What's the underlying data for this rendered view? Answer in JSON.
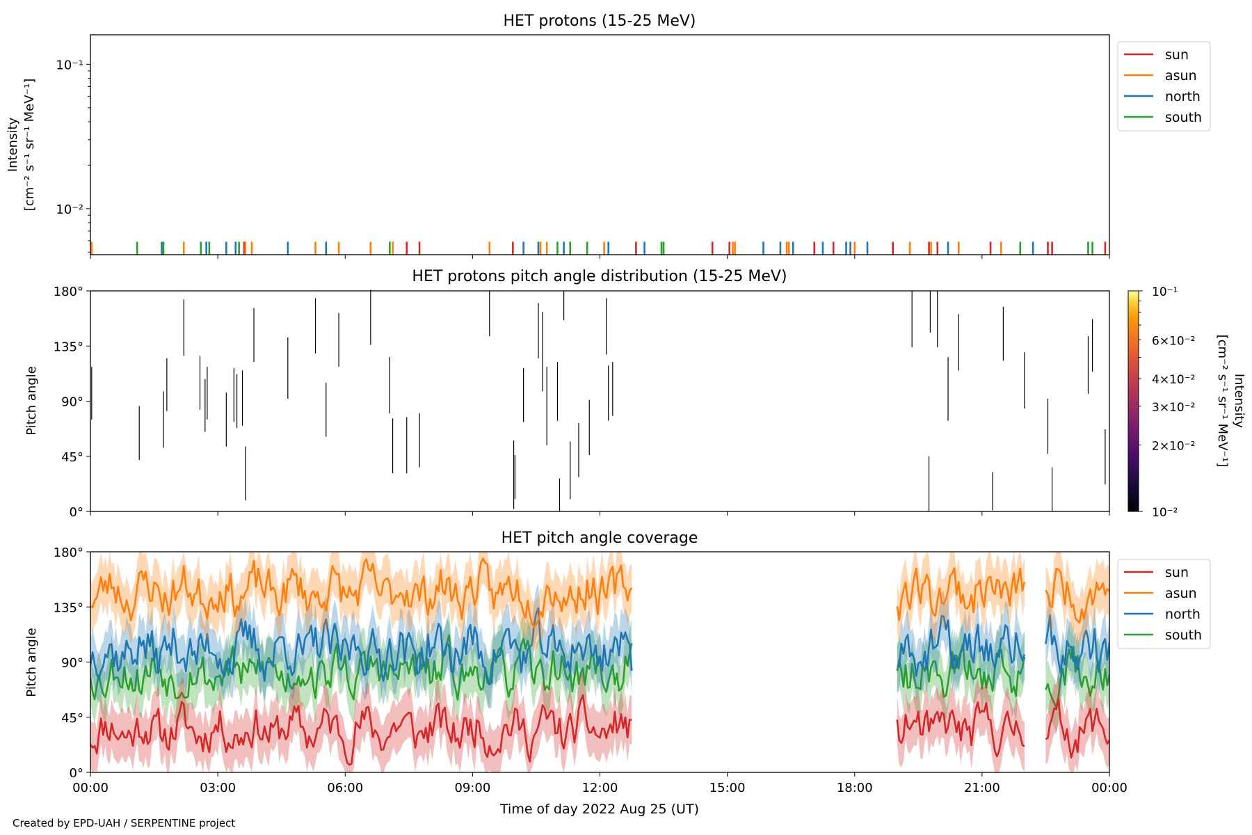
{
  "credit": "Created by EPD-UAH / SERPENTINE project",
  "xlabel": "Time of day 2022 Aug 25 (UT)",
  "xticks": [
    "00:00",
    "03:00",
    "06:00",
    "09:00",
    "12:00",
    "15:00",
    "18:00",
    "21:00",
    "00:00"
  ],
  "x_range_hours": [
    0,
    24
  ],
  "colors": {
    "sun": "#d62728",
    "asun": "#ff7f0e",
    "north": "#1f77b4",
    "south": "#2ca02c"
  },
  "legend_entries": [
    "sun",
    "asun",
    "north",
    "south"
  ],
  "chart_data": [
    {
      "type": "line",
      "title": "HET protons (15-25 MeV)",
      "ylabel_line1": "Intensity",
      "ylabel_line2": "[cm⁻² s⁻¹ sr⁻¹ MeV⁻¹]",
      "yscale": "log",
      "ylim": [
        0.0048,
        0.16
      ],
      "ytick_labels": [
        "10⁻²",
        "10⁻¹"
      ],
      "ytick_values": [
        0.01,
        0.1
      ],
      "legend_placement": "outside-right-top",
      "spikes": [
        {
          "x": 0.03,
          "series": "asun"
        },
        {
          "x": 1.1,
          "series": "south"
        },
        {
          "x": 1.68,
          "series": "north"
        },
        {
          "x": 1.72,
          "series": "south"
        },
        {
          "x": 2.2,
          "series": "asun"
        },
        {
          "x": 2.6,
          "series": "south"
        },
        {
          "x": 2.73,
          "series": "north"
        },
        {
          "x": 2.8,
          "series": "south"
        },
        {
          "x": 3.2,
          "series": "north"
        },
        {
          "x": 3.42,
          "series": "north"
        },
        {
          "x": 3.5,
          "series": "south"
        },
        {
          "x": 3.62,
          "series": "sun"
        },
        {
          "x": 3.65,
          "series": "asun"
        },
        {
          "x": 3.8,
          "series": "asun"
        },
        {
          "x": 4.65,
          "series": "north"
        },
        {
          "x": 5.3,
          "series": "asun"
        },
        {
          "x": 5.55,
          "series": "north"
        },
        {
          "x": 5.85,
          "series": "asun"
        },
        {
          "x": 6.6,
          "series": "asun"
        },
        {
          "x": 7.05,
          "series": "south"
        },
        {
          "x": 7.12,
          "series": "asun"
        },
        {
          "x": 7.45,
          "series": "sun"
        },
        {
          "x": 7.75,
          "series": "sun"
        },
        {
          "x": 9.4,
          "series": "asun"
        },
        {
          "x": 9.95,
          "series": "sun"
        },
        {
          "x": 10.2,
          "series": "north"
        },
        {
          "x": 10.55,
          "series": "north"
        },
        {
          "x": 10.6,
          "series": "asun"
        },
        {
          "x": 10.75,
          "series": "asun"
        },
        {
          "x": 11.0,
          "series": "south"
        },
        {
          "x": 11.15,
          "series": "north"
        },
        {
          "x": 11.3,
          "series": "south"
        },
        {
          "x": 11.7,
          "series": "south"
        },
        {
          "x": 12.1,
          "series": "asun"
        },
        {
          "x": 12.2,
          "series": "north"
        },
        {
          "x": 12.85,
          "series": "sun"
        },
        {
          "x": 13.05,
          "series": "north"
        },
        {
          "x": 13.45,
          "series": "south"
        },
        {
          "x": 13.5,
          "series": "south"
        },
        {
          "x": 14.65,
          "series": "sun"
        },
        {
          "x": 15.05,
          "series": "sun"
        },
        {
          "x": 15.13,
          "series": "asun"
        },
        {
          "x": 15.18,
          "series": "asun"
        },
        {
          "x": 15.85,
          "series": "north"
        },
        {
          "x": 16.25,
          "series": "north"
        },
        {
          "x": 16.4,
          "series": "asun"
        },
        {
          "x": 16.45,
          "series": "asun"
        },
        {
          "x": 16.55,
          "series": "north"
        },
        {
          "x": 17.05,
          "series": "sun"
        },
        {
          "x": 17.25,
          "series": "north"
        },
        {
          "x": 17.5,
          "series": "sun"
        },
        {
          "x": 17.8,
          "series": "north"
        },
        {
          "x": 17.9,
          "series": "north"
        },
        {
          "x": 18.0,
          "series": "asun"
        },
        {
          "x": 18.3,
          "series": "north"
        },
        {
          "x": 18.9,
          "series": "sun"
        },
        {
          "x": 19.3,
          "series": "asun"
        },
        {
          "x": 19.75,
          "series": "sun"
        },
        {
          "x": 19.8,
          "series": "asun"
        },
        {
          "x": 19.95,
          "series": "sun"
        },
        {
          "x": 20.2,
          "series": "north"
        },
        {
          "x": 20.45,
          "series": "asun"
        },
        {
          "x": 21.2,
          "series": "sun"
        },
        {
          "x": 21.45,
          "series": "asun"
        },
        {
          "x": 21.9,
          "series": "south"
        },
        {
          "x": 22.2,
          "series": "north"
        },
        {
          "x": 22.55,
          "series": "sun"
        },
        {
          "x": 22.65,
          "series": "sun"
        },
        {
          "x": 23.5,
          "series": "south"
        },
        {
          "x": 23.6,
          "series": "south"
        },
        {
          "x": 23.9,
          "series": "sun"
        }
      ]
    },
    {
      "type": "scatter",
      "title": "HET protons pitch angle distribution (15-25 MeV)",
      "ylabel": "Pitch angle",
      "ylim": [
        0,
        180
      ],
      "ytick_labels": [
        "0°",
        "45°",
        "90°",
        "135°",
        "180°"
      ],
      "ytick_values": [
        0,
        45,
        90,
        135,
        180
      ],
      "colorbar": {
        "label_line1": "Intensity",
        "label_line2": "[cm⁻² s⁻¹ sr⁻¹ MeV⁻¹]",
        "scale": "log",
        "range": [
          0.01,
          0.1
        ],
        "tick_labels": [
          "10⁻²",
          "2×10⁻²",
          "3×10⁻²",
          "4×10⁻²",
          "6×10⁻²",
          "10⁻¹"
        ],
        "tick_values": [
          0.01,
          0.02,
          0.03,
          0.04,
          0.06,
          0.1
        ],
        "colormap": "inferno"
      },
      "segments": [
        {
          "x": 0.03,
          "y0": 75,
          "y1": 118
        },
        {
          "x": 1.15,
          "y0": 42,
          "y1": 86
        },
        {
          "x": 1.72,
          "y0": 52,
          "y1": 98
        },
        {
          "x": 1.8,
          "y0": 82,
          "y1": 125
        },
        {
          "x": 2.2,
          "y0": 127,
          "y1": 173
        },
        {
          "x": 2.58,
          "y0": 83,
          "y1": 127
        },
        {
          "x": 2.7,
          "y0": 65,
          "y1": 108
        },
        {
          "x": 2.75,
          "y0": 75,
          "y1": 118
        },
        {
          "x": 3.2,
          "y0": 53,
          "y1": 97
        },
        {
          "x": 3.38,
          "y0": 73,
          "y1": 117
        },
        {
          "x": 3.45,
          "y0": 68,
          "y1": 112
        },
        {
          "x": 3.58,
          "y0": 70,
          "y1": 115
        },
        {
          "x": 3.65,
          "y0": 9,
          "y1": 53
        },
        {
          "x": 3.85,
          "y0": 122,
          "y1": 166
        },
        {
          "x": 4.65,
          "y0": 92,
          "y1": 142
        },
        {
          "x": 5.3,
          "y0": 129,
          "y1": 174
        },
        {
          "x": 5.55,
          "y0": 61,
          "y1": 105
        },
        {
          "x": 5.85,
          "y0": 118,
          "y1": 162
        },
        {
          "x": 6.6,
          "y0": 136,
          "y1": 181
        },
        {
          "x": 7.05,
          "y0": 80,
          "y1": 126
        },
        {
          "x": 7.12,
          "y0": 31,
          "y1": 76
        },
        {
          "x": 7.45,
          "y0": 31,
          "y1": 77
        },
        {
          "x": 7.75,
          "y0": 36,
          "y1": 80
        },
        {
          "x": 9.4,
          "y0": 143,
          "y1": 180
        },
        {
          "x": 9.97,
          "y0": 2,
          "y1": 58
        },
        {
          "x": 10.0,
          "y0": 10,
          "y1": 46
        },
        {
          "x": 10.2,
          "y0": 73,
          "y1": 117
        },
        {
          "x": 10.55,
          "y0": 125,
          "y1": 170
        },
        {
          "x": 10.65,
          "y0": 98,
          "y1": 163
        },
        {
          "x": 10.75,
          "y0": 54,
          "y1": 118
        },
        {
          "x": 11.0,
          "y0": 74,
          "y1": 122
        },
        {
          "x": 11.05,
          "y0": 0,
          "y1": 27
        },
        {
          "x": 11.15,
          "y0": 156,
          "y1": 180
        },
        {
          "x": 11.3,
          "y0": 10,
          "y1": 57
        },
        {
          "x": 11.5,
          "y0": 28,
          "y1": 72
        },
        {
          "x": 11.75,
          "y0": 46,
          "y1": 91
        },
        {
          "x": 12.15,
          "y0": 128,
          "y1": 174
        },
        {
          "x": 12.2,
          "y0": 74,
          "y1": 119
        },
        {
          "x": 12.3,
          "y0": 78,
          "y1": 122
        },
        {
          "x": 19.35,
          "y0": 134,
          "y1": 180
        },
        {
          "x": 19.75,
          "y0": 0,
          "y1": 45
        },
        {
          "x": 19.78,
          "y0": 146,
          "y1": 180
        },
        {
          "x": 19.95,
          "y0": 134,
          "y1": 180
        },
        {
          "x": 20.2,
          "y0": 74,
          "y1": 126
        },
        {
          "x": 20.45,
          "y0": 115,
          "y1": 161
        },
        {
          "x": 21.25,
          "y0": 1,
          "y1": 32
        },
        {
          "x": 21.5,
          "y0": 123,
          "y1": 167
        },
        {
          "x": 22.0,
          "y0": 84,
          "y1": 130
        },
        {
          "x": 22.55,
          "y0": 47,
          "y1": 92
        },
        {
          "x": 22.65,
          "y0": 0,
          "y1": 36
        },
        {
          "x": 23.5,
          "y0": 96,
          "y1": 143
        },
        {
          "x": 23.6,
          "y0": 114,
          "y1": 157
        },
        {
          "x": 23.9,
          "y0": 22,
          "y1": 67
        }
      ]
    },
    {
      "type": "area",
      "title": "HET pitch angle coverage",
      "ylabel": "Pitch angle",
      "ylim": [
        0,
        180
      ],
      "ytick_labels": [
        "0°",
        "45°",
        "90°",
        "135°",
        "180°"
      ],
      "ytick_values": [
        0,
        45,
        90,
        135,
        180
      ],
      "legend_placement": "outside-right-top",
      "data_intervals_hours": [
        [
          0,
          12.75
        ],
        [
          19.0,
          22.0
        ],
        [
          22.5,
          24
        ]
      ],
      "step_hours": 0.05,
      "band_halfwidth_deg": 20,
      "series": [
        {
          "name": "sun",
          "mean": 35,
          "amp": 14,
          "seed": 11
        },
        {
          "name": "asun",
          "mean": 148,
          "amp": 15,
          "seed": 23
        },
        {
          "name": "north",
          "mean": 100,
          "amp": 17,
          "seed": 37
        },
        {
          "name": "south",
          "mean": 82,
          "amp": 15,
          "seed": 53
        }
      ]
    }
  ]
}
